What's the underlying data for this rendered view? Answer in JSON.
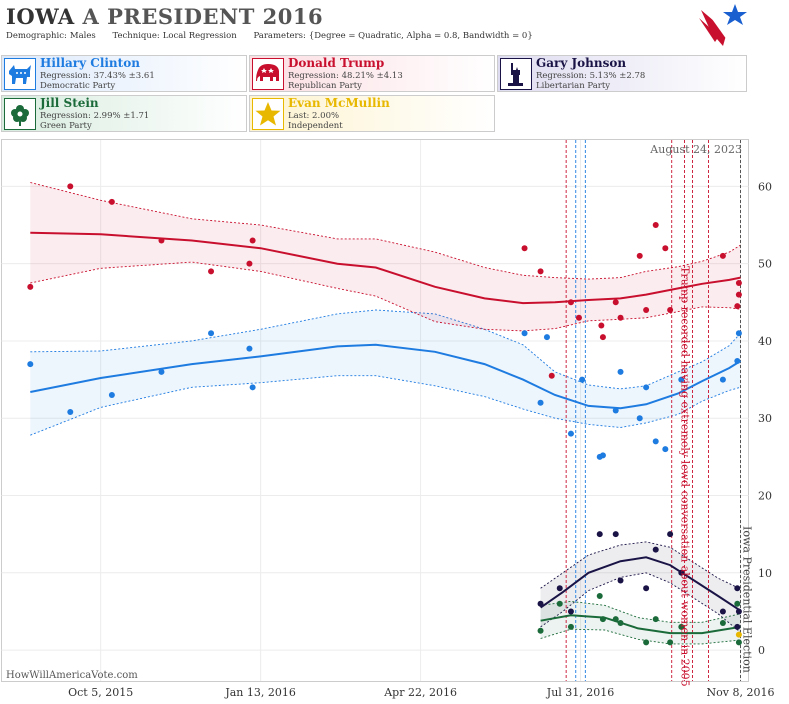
{
  "header": {
    "state": "IOWA",
    "title_rest": "A PRESIDENT 2016",
    "demographic_label": "Demographic:",
    "demographic_value": "Males",
    "technique_label": "Technique:",
    "technique_value": "Local Regression",
    "parameters_label": "Parameters:",
    "parameters_value": "{Degree = Quadratic, Alpha = 0.8, Bandwidth = 0}"
  },
  "candidates": [
    {
      "name": "Hillary Clinton",
      "line1": "Regression: 37.43% ±3.61",
      "line2": "Democratic Party",
      "color": "#1e7be0",
      "icon": "donkey-icon"
    },
    {
      "name": "Donald Trump",
      "line1": "Regression: 48.21% ±4.13",
      "line2": "Republican Party",
      "color": "#c8102e",
      "icon": "elephant-icon"
    },
    {
      "name": "Gary Johnson",
      "line1": "Regression: 5.13% ±2.78",
      "line2": "Libertarian Party",
      "color": "#1a1446",
      "icon": "statue-of-liberty-icon"
    },
    {
      "name": "Jill Stein",
      "line1": "Regression: 2.99% ±1.71",
      "line2": "Green Party",
      "color": "#1b6b3a",
      "icon": "flower-icon"
    },
    {
      "name": "Evan McMullin",
      "line1": "Last: 2.00%",
      "line2": "Independent",
      "color": "#e8b800",
      "icon": "star-icon"
    }
  ],
  "chart_data": {
    "type": "scatter",
    "date_label": "August 24, 2023",
    "watermark": "HowWillAmericaVote.com",
    "x_ticks": [
      {
        "date": "2015-10-05",
        "label": "Oct 5, 2015"
      },
      {
        "date": "2016-01-13",
        "label": "Jan 13, 2016"
      },
      {
        "date": "2016-04-22",
        "label": "Apr 22, 2016"
      },
      {
        "date": "2016-07-31",
        "label": "Jul 31, 2016"
      },
      {
        "date": "2016-11-08",
        "label": "Nov 8, 2016"
      }
    ],
    "xlim": [
      "2015-08-04",
      "2016-11-13"
    ],
    "ylim": [
      -4,
      66
    ],
    "y_ticks": [
      0,
      10,
      20,
      30,
      40,
      50,
      60
    ],
    "grid": true,
    "annotations": [
      {
        "text": "Trump recorded having extremely lewd conversation about women in 2005",
        "date": "2016-10-07",
        "color": "#c8102e"
      },
      {
        "text": "Iowa Presidential Election",
        "date": "2016-11-08",
        "color": "#444444"
      }
    ],
    "event_lines": [
      {
        "date": "2016-07-22",
        "color": "#c8102e"
      },
      {
        "date": "2016-07-28",
        "color": "#1e7be0"
      },
      {
        "date": "2016-08-03",
        "color": "#1e7be0"
      },
      {
        "date": "2016-09-26",
        "color": "#c8102e"
      },
      {
        "date": "2016-10-04",
        "color": "#c8102e"
      },
      {
        "date": "2016-10-09",
        "color": "#c8102e"
      },
      {
        "date": "2016-10-19",
        "color": "#c8102e"
      },
      {
        "date": "2016-11-08",
        "color": "#444444"
      }
    ],
    "series": [
      {
        "name": "Hillary Clinton",
        "color": "#1e7be0",
        "band": "#1e7be0",
        "points": [
          [
            "2015-08-22",
            37
          ],
          [
            "2015-09-16",
            30.8
          ],
          [
            "2015-10-12",
            33
          ],
          [
            "2015-11-12",
            36
          ],
          [
            "2015-12-13",
            41
          ],
          [
            "2016-01-06",
            39
          ],
          [
            "2016-01-08",
            34
          ],
          [
            "2016-06-26",
            41
          ],
          [
            "2016-07-06",
            32
          ],
          [
            "2016-07-10",
            40.5
          ],
          [
            "2016-07-25",
            28
          ],
          [
            "2016-08-01",
            35
          ],
          [
            "2016-08-12",
            25
          ],
          [
            "2016-08-14",
            25.2
          ],
          [
            "2016-08-22",
            31
          ],
          [
            "2016-08-25",
            36
          ],
          [
            "2016-09-06",
            30
          ],
          [
            "2016-09-10",
            34
          ],
          [
            "2016-09-16",
            27
          ],
          [
            "2016-09-22",
            26
          ],
          [
            "2016-10-02",
            35
          ],
          [
            "2016-10-28",
            35
          ],
          [
            "2016-11-06",
            37.4
          ],
          [
            "2016-11-07",
            41
          ]
        ],
        "trend": [
          [
            "2015-08-22",
            33.4
          ],
          [
            "2015-10-05",
            35.2
          ],
          [
            "2015-12-01",
            37
          ],
          [
            "2016-01-13",
            38
          ],
          [
            "2016-03-01",
            39.3
          ],
          [
            "2016-03-25",
            39.5
          ],
          [
            "2016-05-01",
            38.6
          ],
          [
            "2016-06-01",
            37
          ],
          [
            "2016-06-25",
            35
          ],
          [
            "2016-07-15",
            33
          ],
          [
            "2016-08-05",
            31.6
          ],
          [
            "2016-08-25",
            31.3
          ],
          [
            "2016-09-10",
            31.8
          ],
          [
            "2016-09-30",
            33.2
          ],
          [
            "2016-10-15",
            34.8
          ],
          [
            "2016-11-01",
            36.5
          ],
          [
            "2016-11-08",
            37.4
          ]
        ],
        "upper": [
          [
            "2015-08-22",
            38.6
          ],
          [
            "2015-10-05",
            38.7
          ],
          [
            "2015-12-01",
            40
          ],
          [
            "2016-01-13",
            41.5
          ],
          [
            "2016-03-01",
            43.5
          ],
          [
            "2016-03-25",
            44
          ],
          [
            "2016-05-01",
            43.5
          ],
          [
            "2016-06-01",
            41.5
          ],
          [
            "2016-06-25",
            39.5
          ],
          [
            "2016-07-15",
            36
          ],
          [
            "2016-08-05",
            34.3
          ],
          [
            "2016-08-25",
            33.8
          ],
          [
            "2016-09-10",
            34.2
          ],
          [
            "2016-09-30",
            36
          ],
          [
            "2016-10-15",
            37.3
          ],
          [
            "2016-11-01",
            39.4
          ],
          [
            "2016-11-08",
            41
          ]
        ],
        "lower": [
          [
            "2015-08-22",
            27.8
          ],
          [
            "2015-10-05",
            31.4
          ],
          [
            "2015-12-01",
            34
          ],
          [
            "2016-01-13",
            34.6
          ],
          [
            "2016-03-01",
            35.5
          ],
          [
            "2016-03-25",
            35.5
          ],
          [
            "2016-05-01",
            34.2
          ],
          [
            "2016-06-01",
            32.8
          ],
          [
            "2016-06-25",
            31.2
          ],
          [
            "2016-07-15",
            30
          ],
          [
            "2016-08-05",
            29.2
          ],
          [
            "2016-08-25",
            28.8
          ],
          [
            "2016-09-10",
            29.4
          ],
          [
            "2016-09-30",
            30.5
          ],
          [
            "2016-10-15",
            32.2
          ],
          [
            "2016-11-01",
            33.6
          ],
          [
            "2016-11-08",
            34
          ]
        ]
      },
      {
        "name": "Donald Trump",
        "color": "#c8102e",
        "band": "#c8102e",
        "points": [
          [
            "2015-08-22",
            47
          ],
          [
            "2015-09-16",
            60
          ],
          [
            "2015-10-12",
            58
          ],
          [
            "2015-11-12",
            53
          ],
          [
            "2015-12-13",
            49
          ],
          [
            "2016-01-06",
            50
          ],
          [
            "2016-01-08",
            53
          ],
          [
            "2016-06-26",
            52
          ],
          [
            "2016-07-06",
            49
          ],
          [
            "2016-07-13",
            35.5
          ],
          [
            "2016-07-25",
            45
          ],
          [
            "2016-07-30",
            43
          ],
          [
            "2016-08-13",
            42
          ],
          [
            "2016-08-14",
            40.5
          ],
          [
            "2016-08-22",
            45
          ],
          [
            "2016-08-25",
            43
          ],
          [
            "2016-09-06",
            51
          ],
          [
            "2016-09-10",
            44
          ],
          [
            "2016-09-16",
            55
          ],
          [
            "2016-09-22",
            52
          ],
          [
            "2016-09-25",
            44
          ],
          [
            "2016-10-28",
            51
          ],
          [
            "2016-11-06",
            44.5
          ],
          [
            "2016-11-07",
            46
          ],
          [
            "2016-11-07",
            47.5
          ]
        ],
        "trend": [
          [
            "2015-08-22",
            54
          ],
          [
            "2015-10-05",
            53.8
          ],
          [
            "2015-12-01",
            53
          ],
          [
            "2016-01-13",
            52
          ],
          [
            "2016-03-01",
            50
          ],
          [
            "2016-03-25",
            49.5
          ],
          [
            "2016-05-01",
            47
          ],
          [
            "2016-06-01",
            45.5
          ],
          [
            "2016-06-25",
            44.9
          ],
          [
            "2016-07-15",
            45
          ],
          [
            "2016-08-05",
            45.3
          ],
          [
            "2016-08-25",
            45.5
          ],
          [
            "2016-09-10",
            46
          ],
          [
            "2016-09-30",
            46.8
          ],
          [
            "2016-10-15",
            47.4
          ],
          [
            "2016-11-01",
            47.9
          ],
          [
            "2016-11-08",
            48.2
          ]
        ],
        "upper": [
          [
            "2015-08-22",
            60.5
          ],
          [
            "2015-10-05",
            58.2
          ],
          [
            "2015-12-01",
            55.8
          ],
          [
            "2016-01-13",
            55
          ],
          [
            "2016-03-01",
            53.2
          ],
          [
            "2016-03-25",
            53.2
          ],
          [
            "2016-05-01",
            51.5
          ],
          [
            "2016-06-01",
            49.5
          ],
          [
            "2016-06-25",
            48.5
          ],
          [
            "2016-07-15",
            48.2
          ],
          [
            "2016-08-05",
            48
          ],
          [
            "2016-08-25",
            48.2
          ],
          [
            "2016-09-10",
            49
          ],
          [
            "2016-09-30",
            49.6
          ],
          [
            "2016-10-15",
            50.3
          ],
          [
            "2016-11-01",
            51.5
          ],
          [
            "2016-11-08",
            52.4
          ]
        ],
        "lower": [
          [
            "2015-08-22",
            47.5
          ],
          [
            "2015-10-05",
            49.4
          ],
          [
            "2015-12-01",
            50.2
          ],
          [
            "2016-01-13",
            49
          ],
          [
            "2016-03-01",
            46.8
          ],
          [
            "2016-03-25",
            45.8
          ],
          [
            "2016-05-01",
            42.5
          ],
          [
            "2016-06-01",
            41.5
          ],
          [
            "2016-06-25",
            41.3
          ],
          [
            "2016-07-15",
            41.6
          ],
          [
            "2016-08-05",
            42.6
          ],
          [
            "2016-08-25",
            42.8
          ],
          [
            "2016-09-10",
            43
          ],
          [
            "2016-09-30",
            43.8
          ],
          [
            "2016-10-15",
            44.4
          ],
          [
            "2016-11-01",
            44.3
          ],
          [
            "2016-11-08",
            44.1
          ]
        ]
      },
      {
        "name": "Gary Johnson",
        "color": "#1a1446",
        "band": "#1a1446",
        "points": [
          [
            "2016-07-06",
            6
          ],
          [
            "2016-07-18",
            8
          ],
          [
            "2016-07-25",
            5
          ],
          [
            "2016-08-12",
            15
          ],
          [
            "2016-08-22",
            15
          ],
          [
            "2016-08-25",
            9
          ],
          [
            "2016-09-10",
            8
          ],
          [
            "2016-09-16",
            13
          ],
          [
            "2016-09-25",
            15
          ],
          [
            "2016-10-02",
            10
          ],
          [
            "2016-10-28",
            5
          ],
          [
            "2016-11-06",
            3
          ],
          [
            "2016-11-06",
            8
          ],
          [
            "2016-11-07",
            5
          ]
        ],
        "trend": [
          [
            "2016-07-06",
            5.5
          ],
          [
            "2016-07-20",
            7.5
          ],
          [
            "2016-08-05",
            10
          ],
          [
            "2016-08-25",
            11.5
          ],
          [
            "2016-09-10",
            12
          ],
          [
            "2016-09-25",
            11
          ],
          [
            "2016-10-10",
            9
          ],
          [
            "2016-10-25",
            7
          ],
          [
            "2016-11-08",
            5.1
          ]
        ],
        "upper": [
          [
            "2016-07-06",
            8
          ],
          [
            "2016-07-20",
            10
          ],
          [
            "2016-08-05",
            12.3
          ],
          [
            "2016-08-25",
            13.6
          ],
          [
            "2016-09-10",
            14
          ],
          [
            "2016-09-25",
            13.3
          ],
          [
            "2016-10-10",
            11.3
          ],
          [
            "2016-10-25",
            9.3
          ],
          [
            "2016-11-08",
            7.9
          ]
        ],
        "lower": [
          [
            "2016-07-06",
            3
          ],
          [
            "2016-07-20",
            5
          ],
          [
            "2016-08-05",
            7.7
          ],
          [
            "2016-08-25",
            9.4
          ],
          [
            "2016-09-10",
            10
          ],
          [
            "2016-09-25",
            8.7
          ],
          [
            "2016-10-10",
            6.7
          ],
          [
            "2016-10-25",
            4.7
          ],
          [
            "2016-11-08",
            2.3
          ]
        ]
      },
      {
        "name": "Jill Stein",
        "color": "#1b6b3a",
        "band": "#1b6b3a",
        "points": [
          [
            "2016-07-06",
            2.5
          ],
          [
            "2016-07-18",
            6
          ],
          [
            "2016-07-25",
            3
          ],
          [
            "2016-08-12",
            7
          ],
          [
            "2016-08-14",
            4
          ],
          [
            "2016-08-22",
            4
          ],
          [
            "2016-08-25",
            3.5
          ],
          [
            "2016-09-10",
            1
          ],
          [
            "2016-09-16",
            4
          ],
          [
            "2016-09-25",
            1
          ],
          [
            "2016-10-02",
            3
          ],
          [
            "2016-10-28",
            3.5
          ],
          [
            "2016-11-06",
            6
          ],
          [
            "2016-11-07",
            1
          ]
        ],
        "trend": [
          [
            "2016-07-06",
            3.8
          ],
          [
            "2016-07-25",
            4.5
          ],
          [
            "2016-08-15",
            4.2
          ],
          [
            "2016-09-05",
            2.8
          ],
          [
            "2016-09-25",
            2.2
          ],
          [
            "2016-10-15",
            2.2
          ],
          [
            "2016-11-08",
            3
          ]
        ],
        "upper": [
          [
            "2016-07-06",
            5.8
          ],
          [
            "2016-07-25",
            6.3
          ],
          [
            "2016-08-15",
            5.8
          ],
          [
            "2016-09-05",
            4.2
          ],
          [
            "2016-09-25",
            3.6
          ],
          [
            "2016-10-15",
            3.6
          ],
          [
            "2016-11-08",
            4.7
          ]
        ],
        "lower": [
          [
            "2016-07-06",
            1.5
          ],
          [
            "2016-07-25",
            2.7
          ],
          [
            "2016-08-15",
            2.6
          ],
          [
            "2016-09-05",
            1.4
          ],
          [
            "2016-09-25",
            0.8
          ],
          [
            "2016-10-15",
            0.8
          ],
          [
            "2016-11-08",
            1.3
          ]
        ]
      },
      {
        "name": "Evan McMullin",
        "color": "#e8b800",
        "band": "#e8b800",
        "points": [
          [
            "2016-11-07",
            2
          ]
        ],
        "trend": [],
        "upper": [],
        "lower": []
      }
    ]
  }
}
